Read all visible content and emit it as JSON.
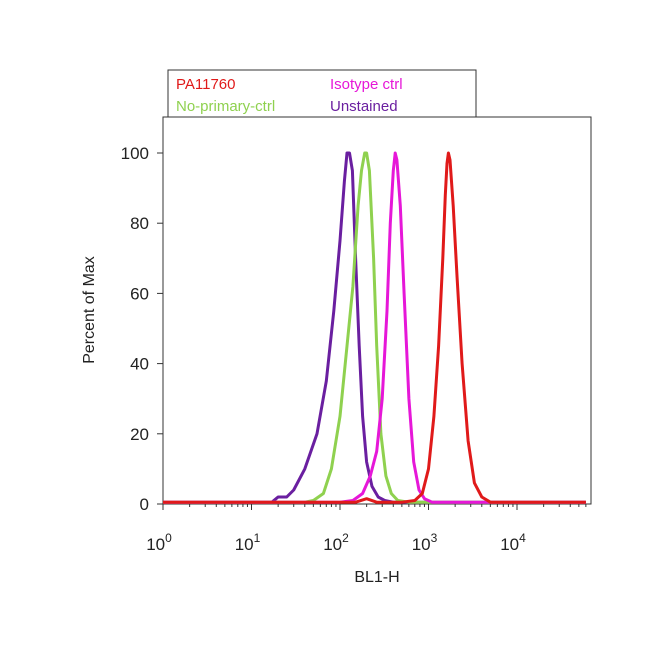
{
  "chart_data": {
    "type": "line",
    "xlabel": "BL1-H",
    "ylabel": "Percent of Max",
    "x_scale": "log",
    "xlim": [
      1,
      60000
    ],
    "ylim": [
      0,
      110
    ],
    "x_ticks": [
      {
        "value": 1,
        "base": "10",
        "exp": "0"
      },
      {
        "value": 10,
        "base": "10",
        "exp": "1"
      },
      {
        "value": 100,
        "base": "10",
        "exp": "2"
      },
      {
        "value": 1000,
        "base": "10",
        "exp": "3"
      },
      {
        "value": 10000,
        "base": "10",
        "exp": "4"
      }
    ],
    "y_ticks": [
      0,
      20,
      40,
      60,
      80,
      100
    ],
    "grid": false,
    "legend_position": "top-left-above",
    "series": [
      {
        "name": "Unstained",
        "color": "#6a1fa0",
        "points": [
          [
            1,
            0.5
          ],
          [
            17,
            0.5
          ],
          [
            20,
            2
          ],
          [
            25,
            2
          ],
          [
            30,
            4
          ],
          [
            40,
            10
          ],
          [
            55,
            20
          ],
          [
            70,
            35
          ],
          [
            85,
            55
          ],
          [
            100,
            75
          ],
          [
            112,
            92
          ],
          [
            120,
            100
          ],
          [
            128,
            100
          ],
          [
            138,
            95
          ],
          [
            150,
            70
          ],
          [
            165,
            45
          ],
          [
            180,
            25
          ],
          [
            200,
            12
          ],
          [
            230,
            5
          ],
          [
            270,
            2
          ],
          [
            320,
            1
          ],
          [
            400,
            0.5
          ],
          [
            60000,
            0.5
          ]
        ]
      },
      {
        "name": "No-primary-ctrl",
        "color": "#8fd14f",
        "points": [
          [
            1,
            0.5
          ],
          [
            40,
            0.5
          ],
          [
            50,
            1
          ],
          [
            65,
            3
          ],
          [
            80,
            10
          ],
          [
            100,
            25
          ],
          [
            120,
            45
          ],
          [
            140,
            62
          ],
          [
            160,
            85
          ],
          [
            175,
            95
          ],
          [
            190,
            100
          ],
          [
            200,
            100
          ],
          [
            215,
            95
          ],
          [
            240,
            70
          ],
          [
            260,
            45
          ],
          [
            290,
            20
          ],
          [
            330,
            8
          ],
          [
            380,
            3
          ],
          [
            450,
            1
          ],
          [
            600,
            0.5
          ],
          [
            60000,
            0.5
          ]
        ]
      },
      {
        "name": "Isotype ctrl",
        "color": "#e617d8",
        "points": [
          [
            1,
            0.5
          ],
          [
            100,
            0.5
          ],
          [
            140,
            1
          ],
          [
            180,
            3
          ],
          [
            220,
            8
          ],
          [
            260,
            15
          ],
          [
            300,
            30
          ],
          [
            340,
            55
          ],
          [
            370,
            80
          ],
          [
            400,
            95
          ],
          [
            420,
            100
          ],
          [
            440,
            98
          ],
          [
            480,
            85
          ],
          [
            530,
            60
          ],
          [
            600,
            30
          ],
          [
            680,
            12
          ],
          [
            780,
            4
          ],
          [
            900,
            1.5
          ],
          [
            1100,
            0.5
          ],
          [
            60000,
            0.5
          ]
        ]
      },
      {
        "name": "PA11760",
        "color": "#e01a1a",
        "points": [
          [
            1,
            0.5
          ],
          [
            150,
            0.5
          ],
          [
            200,
            1.5
          ],
          [
            260,
            0.5
          ],
          [
            500,
            0.5
          ],
          [
            700,
            1
          ],
          [
            850,
            3
          ],
          [
            1000,
            10
          ],
          [
            1150,
            25
          ],
          [
            1300,
            45
          ],
          [
            1450,
            70
          ],
          [
            1550,
            88
          ],
          [
            1620,
            97
          ],
          [
            1680,
            100
          ],
          [
            1750,
            98
          ],
          [
            1900,
            85
          ],
          [
            2100,
            65
          ],
          [
            2400,
            40
          ],
          [
            2800,
            18
          ],
          [
            3300,
            6
          ],
          [
            4000,
            2
          ],
          [
            5000,
            0.5
          ],
          [
            60000,
            0.5
          ]
        ]
      }
    ]
  }
}
